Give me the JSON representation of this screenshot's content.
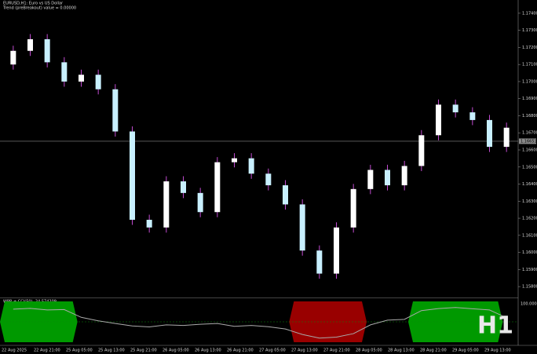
{
  "chart_data": {
    "type": "candlestick",
    "title": "EURUSD,H1: Euro vs US Dollar",
    "subtitle": "Trend (preBreakout) value = 0.00000",
    "open": [
      1.171,
      1.1718,
      1.17248,
      1.17113,
      1.17,
      1.1704,
      1.16955,
      1.16708,
      1.16191,
      1.16146,
      1.16416,
      1.16348,
      1.16236,
      1.16528,
      1.16551,
      1.16461,
      1.16393,
      1.16281,
      1.16011,
      1.15876,
      1.16146,
      1.16371,
      1.16483,
      1.16393,
      1.16506,
      1.16686,
      1.16865,
      1.1682,
      1.16775,
      1.16618
    ],
    "high": [
      1.1721,
      1.17278,
      1.17278,
      1.17143,
      1.1707,
      1.1707,
      1.16985,
      1.16738,
      1.16221,
      1.16446,
      1.16446,
      1.16378,
      1.16558,
      1.16581,
      1.16581,
      1.16491,
      1.16423,
      1.16311,
      1.16041,
      1.16176,
      1.16401,
      1.16513,
      1.16513,
      1.16536,
      1.16716,
      1.16895,
      1.16895,
      1.1685,
      1.16805,
      1.1676
    ],
    "low": [
      1.1707,
      1.1715,
      1.17083,
      1.1697,
      1.1697,
      1.16925,
      1.16678,
      1.16161,
      1.16116,
      1.16116,
      1.16318,
      1.16206,
      1.16206,
      1.16498,
      1.16431,
      1.16363,
      1.16251,
      1.15981,
      1.15846,
      1.15846,
      1.16116,
      1.16341,
      1.16363,
      1.16363,
      1.16476,
      1.16656,
      1.1679,
      1.16745,
      1.16588,
      1.16588
    ],
    "close": [
      1.1718,
      1.17248,
      1.17113,
      1.17,
      1.1704,
      1.16955,
      1.16708,
      1.16191,
      1.16146,
      1.16416,
      1.16348,
      1.16236,
      1.16528,
      1.16551,
      1.16461,
      1.16393,
      1.16281,
      1.16011,
      1.15876,
      1.16146,
      1.16371,
      1.16483,
      1.16393,
      1.16506,
      1.16686,
      1.16865,
      1.1682,
      1.16775,
      1.16618,
      1.1673
    ],
    "bull_color": "#ffffff",
    "bear_color": "#c8f0ff",
    "wick_color": "#c04bd0",
    "current_price": {
      "value": 1.16651,
      "label": "1.16651"
    },
    "ylim": [
      1.1575,
      1.1745
    ],
    "yticks": [
      {
        "value": 1.158,
        "label": "1.15800"
      },
      {
        "value": 1.159,
        "label": "1.15900"
      },
      {
        "value": 1.16,
        "label": "1.16000"
      },
      {
        "value": 1.161,
        "label": "1.16100"
      },
      {
        "value": 1.162,
        "label": "1.16200"
      },
      {
        "value": 1.163,
        "label": "1.16300"
      },
      {
        "value": 1.164,
        "label": "1.16400"
      },
      {
        "value": 1.165,
        "label": "1.16500"
      },
      {
        "value": 1.166,
        "label": "1.16600"
      },
      {
        "value": 1.167,
        "label": "1.16700"
      },
      {
        "value": 1.168,
        "label": "1.16800"
      },
      {
        "value": 1.169,
        "label": "1.16900"
      },
      {
        "value": 1.17,
        "label": "1.17000"
      },
      {
        "value": 1.171,
        "label": "1.17100"
      },
      {
        "value": 1.172,
        "label": "1.17200"
      },
      {
        "value": 1.173,
        "label": "1.17300"
      },
      {
        "value": 1.174,
        "label": "1.17400"
      }
    ],
    "x_labels": [
      "22 Aug 2025",
      "22 Aug 21:00",
      "25 Aug 05:00",
      "25 Aug 13:00",
      "25 Aug 21:00",
      "26 Aug 05:00",
      "26 Aug 13:00",
      "26 Aug 21:00",
      "27 Aug 05:00",
      "27 Aug 13:00",
      "27 Aug 21:00",
      "28 Aug 05:00",
      "28 Aug 13:00",
      "28 Aug 21:00",
      "29 Aug 05:00",
      "29 Aug 13:00"
    ],
    "timeframe": "H1",
    "oscillator": {
      "name": "WPR + CCI(50) -24.574209",
      "values": [
        62,
        66,
        58,
        60,
        22,
        5,
        -8,
        -20,
        -25,
        -15,
        -18,
        -12,
        -8,
        -22,
        -18,
        -24,
        -35,
        -62,
        -80,
        -75,
        -58,
        -15,
        8,
        12,
        55,
        65,
        70,
        64,
        58,
        20
      ],
      "ylim": [
        -100,
        100
      ],
      "upper_level": 50,
      "lower_level": -50,
      "upper_color": "#009900",
      "lower_color": "#990000",
      "line_color": "#aaaaaa",
      "scale_label": {
        "value": 100,
        "label": "100.000000"
      }
    }
  }
}
